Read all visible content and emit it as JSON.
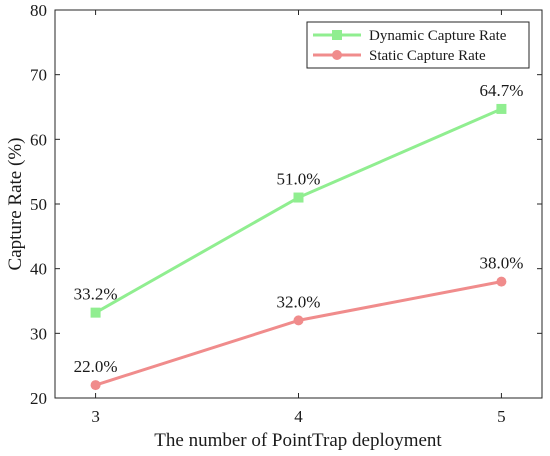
{
  "chart_data": {
    "type": "line",
    "title": "",
    "xlabel": "The number of PointTrap deployment",
    "ylabel": "Capture Rate (%)",
    "x": [
      3,
      4,
      5
    ],
    "x_tick_labels": [
      "3",
      "4",
      "5"
    ],
    "xlim": [
      2.8,
      5.2
    ],
    "ylim": [
      20,
      80
    ],
    "y_ticks": [
      20,
      30,
      40,
      50,
      60,
      70,
      80
    ],
    "y_tick_labels": [
      "20",
      "30",
      "40",
      "50",
      "60",
      "70",
      "80"
    ],
    "grid": false,
    "legend_position": "top-right",
    "series": [
      {
        "name": "Dynamic Capture Rate",
        "marker": "square",
        "color": "#90ee90",
        "values": [
          33.2,
          51.0,
          64.7
        ],
        "data_labels": [
          "33.2%",
          "51.0%",
          "64.7%"
        ]
      },
      {
        "name": "Static Capture Rate",
        "marker": "circle",
        "color": "#f08c8c",
        "values": [
          22.0,
          32.0,
          38.0
        ],
        "data_labels": [
          "22.0%",
          "32.0%",
          "38.0%"
        ]
      }
    ]
  }
}
